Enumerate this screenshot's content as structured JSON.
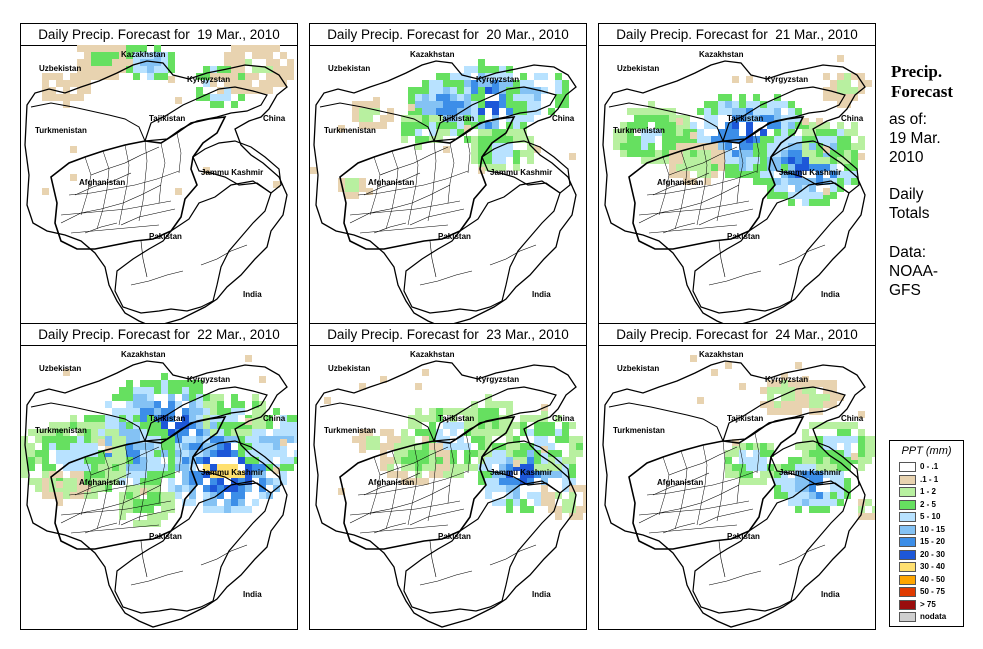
{
  "sidebar": {
    "title_line1": "Precip.",
    "title_line2": "Forecast",
    "asof_line1": "as of:",
    "asof_line2": "19 Mar.",
    "asof_line3": "2010",
    "totals_line1": "Daily",
    "totals_line2": "Totals",
    "data_line1": "Data:",
    "data_line2": "NOAA-",
    "data_line3": "GFS"
  },
  "map_labels": {
    "kazakhstan": "Kazakhstan",
    "uzbekistan": "Uzbekistan",
    "kyrgyzstan": "Kyrgyzstan",
    "tajikistan": "Tajikistan",
    "turkmenistan": "Turkmenistan",
    "china": "China",
    "jammu_kashmir": "Jammu Kashmir",
    "afghanistan": "Afghanistan",
    "pakistan": "Pakistan",
    "india": "India"
  },
  "panels": [
    {
      "title": "Daily Precip. Forecast for  19 Mar., 2010",
      "intensity": 1
    },
    {
      "title": "Daily Precip. Forecast for  20 Mar., 2010",
      "intensity": 2
    },
    {
      "title": "Daily Precip. Forecast for  21 Mar., 2010",
      "intensity": 3
    },
    {
      "title": "Daily Precip. Forecast for  22 Mar., 2010",
      "intensity": 4
    },
    {
      "title": "Daily Precip. Forecast for  23 Mar., 2010",
      "intensity": 5
    },
    {
      "title": "Daily Precip. Forecast for  24 Mar., 2010",
      "intensity": 6
    }
  ],
  "legend": {
    "title": "PPT (mm)",
    "entries": [
      {
        "label": "0 - .1",
        "color": "#ffffff"
      },
      {
        "label": ".1 - 1",
        "color": "#e8d3b0"
      },
      {
        "label": "1 - 2",
        "color": "#b8f0a0"
      },
      {
        "label": "2 - 5",
        "color": "#66e060"
      },
      {
        "label": "5 - 10",
        "color": "#b8e2ff"
      },
      {
        "label": "10 - 15",
        "color": "#84c2f4"
      },
      {
        "label": "15 - 20",
        "color": "#3c8ee8"
      },
      {
        "label": "20 - 30",
        "color": "#1d57d8"
      },
      {
        "label": "30 - 40",
        "color": "#ffe070"
      },
      {
        "label": "40 - 50",
        "color": "#ffa500"
      },
      {
        "label": "50 - 75",
        "color": "#e03a00"
      },
      {
        "label": "> 75",
        "color": "#9a0d0d"
      },
      {
        "label": "nodata",
        "color": "#cfcfcf"
      }
    ]
  }
}
